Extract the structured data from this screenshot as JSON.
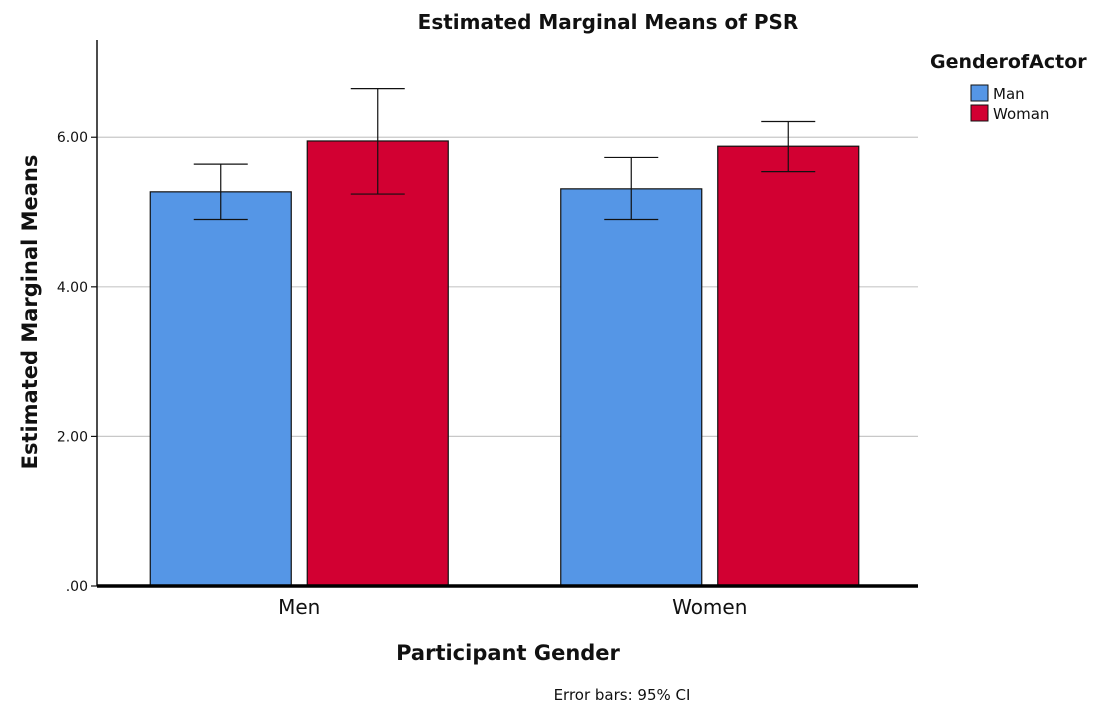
{
  "chart_data": {
    "type": "bar",
    "title": "Estimated Marginal Means of PSR",
    "xlabel": "Participant Gender",
    "ylabel": "Estimated Marginal Means",
    "categories": [
      "Men",
      "Women"
    ],
    "series": [
      {
        "name": "Man",
        "color": "#5596e6",
        "values": [
          5.27,
          5.31
        ],
        "ci_low": [
          4.9,
          4.9
        ],
        "ci_high": [
          5.64,
          5.73
        ]
      },
      {
        "name": "Woman",
        "color": "#d20032",
        "values": [
          5.95,
          5.88
        ],
        "ci_low": [
          5.24,
          5.54
        ],
        "ci_high": [
          6.65,
          6.21
        ]
      }
    ],
    "ylim": [
      0,
      7.3
    ],
    "yticks": [
      0,
      2,
      4,
      6
    ],
    "ytick_labels": [
      ".00",
      "2.00",
      "4.00",
      "6.00"
    ],
    "grid": true,
    "legend": {
      "title": "GenderofActor",
      "placement": "top-right"
    },
    "footnote": "Error bars: 95% CI"
  }
}
